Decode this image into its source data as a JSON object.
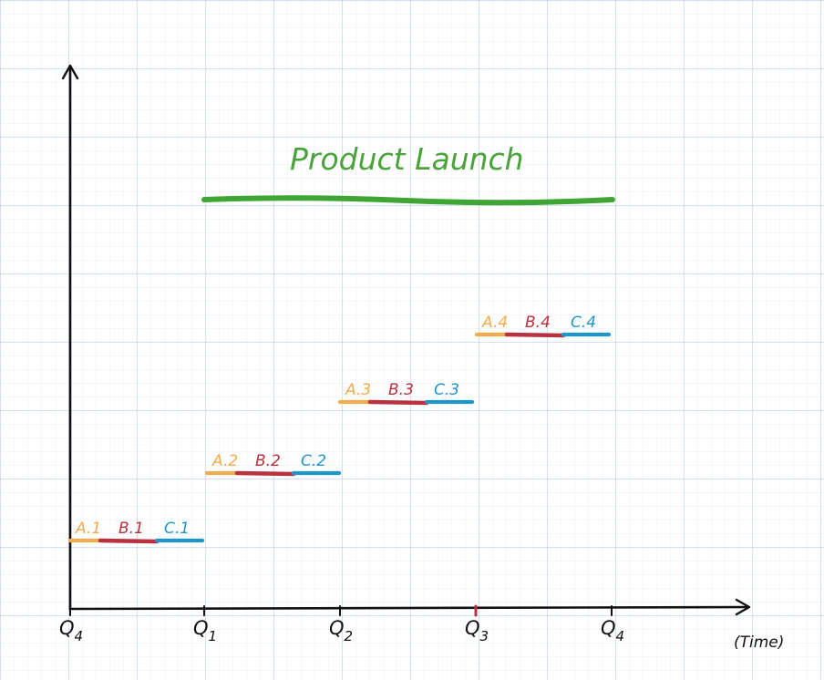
{
  "title": "Product Launch",
  "x_label": "(Time)",
  "x_ticks": [
    "Q4",
    "Q1",
    "Q2",
    "Q3",
    "Q4"
  ],
  "colors": {
    "axis": "#111111",
    "title": "#4aa33a",
    "launch_bar": "#3fa535",
    "A": "#f2ab4e",
    "B": "#b8333f",
    "C": "#1f96c8",
    "q3_tick": "#b8333f"
  },
  "launch": {
    "start": "Q1",
    "end": "Q4"
  },
  "stages": [
    {
      "level": 1,
      "tasks": [
        {
          "label": "A.1",
          "kind": "A"
        },
        {
          "label": "B.1",
          "kind": "B"
        },
        {
          "label": "C.1",
          "kind": "C"
        }
      ]
    },
    {
      "level": 2,
      "tasks": [
        {
          "label": "A.2",
          "kind": "A"
        },
        {
          "label": "B.2",
          "kind": "B"
        },
        {
          "label": "C.2",
          "kind": "C"
        }
      ]
    },
    {
      "level": 3,
      "tasks": [
        {
          "label": "A.3",
          "kind": "A"
        },
        {
          "label": "B.3",
          "kind": "B"
        },
        {
          "label": "C.3",
          "kind": "C"
        }
      ]
    },
    {
      "level": 4,
      "tasks": [
        {
          "label": "A.4",
          "kind": "A"
        },
        {
          "label": "B.4",
          "kind": "B"
        },
        {
          "label": "C.4",
          "kind": "C"
        }
      ]
    }
  ]
}
